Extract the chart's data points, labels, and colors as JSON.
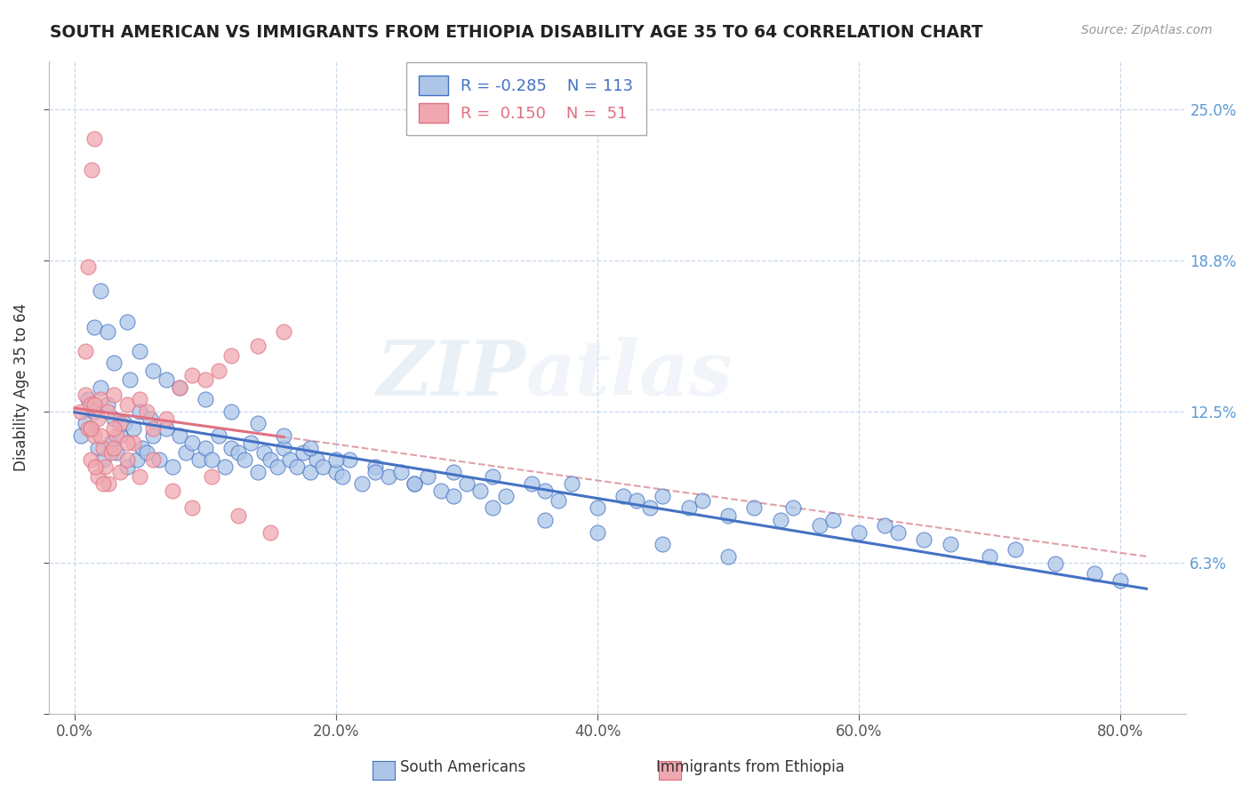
{
  "title": "SOUTH AMERICAN VS IMMIGRANTS FROM ETHIOPIA DISABILITY AGE 35 TO 64 CORRELATION CHART",
  "source_text": "Source: ZipAtlas.com",
  "ylabel": "Disability Age 35 to 64",
  "xticklabels": [
    "0.0%",
    "20.0%",
    "40.0%",
    "60.0%",
    "80.0%"
  ],
  "xticks": [
    0.0,
    20.0,
    40.0,
    60.0,
    80.0
  ],
  "yticks": [
    0.0,
    6.25,
    12.5,
    18.75,
    25.0
  ],
  "yticklabels": [
    "",
    "6.3%",
    "12.5%",
    "18.8%",
    "25.0%"
  ],
  "ymin": 0.0,
  "ymax": 27.0,
  "xmin": -2.0,
  "xmax": 85.0,
  "blue_color": "#adc6e8",
  "pink_color": "#f0a8b0",
  "blue_line_color": "#4472c4",
  "pink_line_color": "#e07080",
  "pink_dash_color": "#e0a0a8",
  "grid_color": "#c8d8ea",
  "R_blue": -0.285,
  "N_blue": 113,
  "R_pink": 0.15,
  "N_pink": 51,
  "legend_label_blue": "South Americans",
  "legend_label_pink": "Immigrants from Ethiopia",
  "watermark_left": "ZIP",
  "watermark_right": "atlas",
  "blue_scatter_x": [
    0.5,
    0.8,
    1.0,
    1.2,
    1.5,
    1.8,
    2.0,
    2.2,
    2.5,
    2.8,
    3.0,
    3.2,
    3.5,
    3.8,
    4.0,
    4.2,
    4.5,
    4.8,
    5.0,
    5.2,
    5.5,
    5.8,
    6.0,
    6.5,
    7.0,
    7.5,
    8.0,
    8.5,
    9.0,
    9.5,
    10.0,
    10.5,
    11.0,
    11.5,
    12.0,
    12.5,
    13.0,
    13.5,
    14.0,
    14.5,
    15.0,
    15.5,
    16.0,
    16.5,
    17.0,
    17.5,
    18.0,
    18.5,
    19.0,
    20.0,
    20.5,
    21.0,
    22.0,
    23.0,
    24.0,
    25.0,
    26.0,
    27.0,
    28.0,
    29.0,
    30.0,
    31.0,
    32.0,
    33.0,
    35.0,
    36.0,
    37.0,
    38.0,
    40.0,
    42.0,
    43.0,
    44.0,
    45.0,
    47.0,
    48.0,
    50.0,
    52.0,
    54.0,
    55.0,
    57.0,
    58.0,
    60.0,
    62.0,
    63.0,
    65.0,
    67.0,
    70.0,
    72.0,
    75.0,
    78.0,
    80.0,
    1.5,
    2.0,
    2.5,
    3.0,
    4.0,
    5.0,
    6.0,
    7.0,
    8.0,
    10.0,
    12.0,
    14.0,
    16.0,
    18.0,
    20.0,
    23.0,
    26.0,
    29.0,
    32.0,
    36.0,
    40.0,
    45.0,
    50.0
  ],
  "blue_scatter_y": [
    11.5,
    12.0,
    13.0,
    11.8,
    12.5,
    11.0,
    13.5,
    10.5,
    12.8,
    11.2,
    12.2,
    10.8,
    11.5,
    12.0,
    10.2,
    13.8,
    11.8,
    10.5,
    12.5,
    11.0,
    10.8,
    12.2,
    11.5,
    10.5,
    11.8,
    10.2,
    11.5,
    10.8,
    11.2,
    10.5,
    11.0,
    10.5,
    11.5,
    10.2,
    11.0,
    10.8,
    10.5,
    11.2,
    10.0,
    10.8,
    10.5,
    10.2,
    11.0,
    10.5,
    10.2,
    10.8,
    10.0,
    10.5,
    10.2,
    10.0,
    9.8,
    10.5,
    9.5,
    10.2,
    9.8,
    10.0,
    9.5,
    9.8,
    9.2,
    10.0,
    9.5,
    9.2,
    9.8,
    9.0,
    9.5,
    9.2,
    8.8,
    9.5,
    8.5,
    9.0,
    8.8,
    8.5,
    9.0,
    8.5,
    8.8,
    8.2,
    8.5,
    8.0,
    8.5,
    7.8,
    8.0,
    7.5,
    7.8,
    7.5,
    7.2,
    7.0,
    6.5,
    6.8,
    6.2,
    5.8,
    5.5,
    16.0,
    17.5,
    15.8,
    14.5,
    16.2,
    15.0,
    14.2,
    13.8,
    13.5,
    13.0,
    12.5,
    12.0,
    11.5,
    11.0,
    10.5,
    10.0,
    9.5,
    9.0,
    8.5,
    8.0,
    7.5,
    7.0,
    6.5
  ],
  "pink_scatter_x": [
    0.5,
    0.8,
    1.0,
    1.2,
    1.3,
    1.5,
    1.5,
    1.8,
    2.0,
    2.2,
    2.5,
    2.8,
    3.0,
    3.2,
    3.5,
    4.0,
    4.5,
    5.0,
    5.5,
    6.0,
    7.0,
    8.0,
    9.0,
    10.0,
    11.0,
    12.0,
    14.0,
    16.0,
    1.0,
    1.2,
    1.5,
    1.8,
    2.0,
    2.3,
    2.6,
    3.0,
    3.5,
    4.0,
    5.0,
    6.0,
    7.5,
    9.0,
    10.5,
    12.5,
    15.0,
    0.8,
    1.2,
    1.6,
    2.2,
    3.0,
    4.0
  ],
  "pink_scatter_y": [
    12.5,
    13.2,
    11.8,
    12.8,
    22.5,
    23.8,
    11.5,
    12.2,
    13.0,
    11.0,
    12.5,
    10.8,
    13.2,
    11.5,
    12.0,
    12.8,
    11.2,
    13.0,
    12.5,
    11.8,
    12.2,
    13.5,
    14.0,
    13.8,
    14.2,
    14.8,
    15.2,
    15.8,
    18.5,
    10.5,
    12.8,
    9.8,
    11.5,
    10.2,
    9.5,
    11.8,
    10.0,
    11.2,
    9.8,
    10.5,
    9.2,
    8.5,
    9.8,
    8.2,
    7.5,
    15.0,
    11.8,
    10.2,
    9.5,
    11.0,
    10.5
  ]
}
